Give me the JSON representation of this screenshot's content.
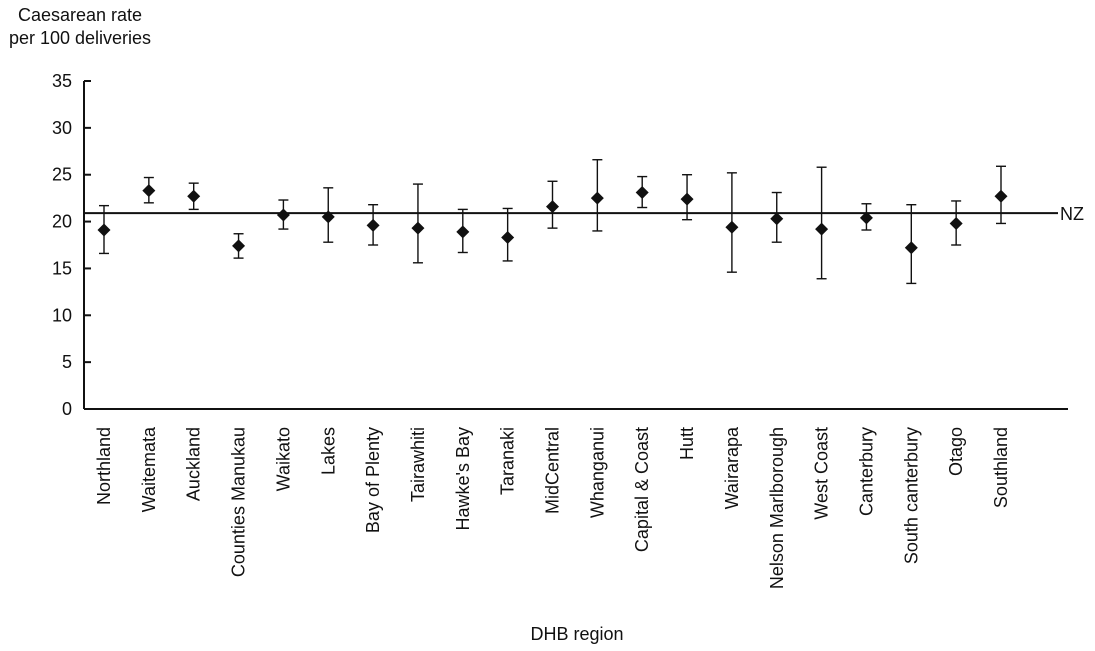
{
  "chart_data": {
    "type": "scatter",
    "title": "",
    "ylabel_lines": [
      "Caesarean rate",
      "per 100 deliveries"
    ],
    "xlabel": "DHB region",
    "ylim": [
      0,
      35
    ],
    "yticks": [
      0,
      5,
      10,
      15,
      20,
      25,
      30,
      35
    ],
    "reference_line": {
      "label": "NZ",
      "value": 20.9
    },
    "grid": false,
    "categories": [
      "Northland",
      "Waitemata",
      "Auckland",
      "Counties Manukau",
      "Waikato",
      "Lakes",
      "Bay of Plenty",
      "Tairawhiti",
      "Hawke's Bay",
      "Taranaki",
      "MidCentral",
      "Whanganui",
      "Capital & Coast",
      "Hutt",
      "Wairarapa",
      "Nelson Marlborough",
      "West Coast",
      "Canterbury",
      "South canterbury",
      "Otago",
      "Southland"
    ],
    "series": [
      {
        "values": [
          19.1,
          23.3,
          22.7,
          17.4,
          20.7,
          20.5,
          19.6,
          19.3,
          18.9,
          18.3,
          21.6,
          22.5,
          23.1,
          22.4,
          19.4,
          20.3,
          19.2,
          20.4,
          17.2,
          19.8,
          22.7
        ],
        "lower": [
          16.6,
          22.0,
          21.3,
          16.1,
          19.2,
          17.8,
          17.5,
          15.6,
          16.7,
          15.8,
          19.3,
          19.0,
          21.5,
          20.2,
          14.6,
          17.8,
          13.9,
          19.1,
          13.4,
          17.5,
          19.8
        ],
        "upper": [
          21.7,
          24.7,
          24.1,
          18.7,
          22.3,
          23.6,
          21.8,
          24.0,
          21.3,
          21.4,
          24.3,
          26.6,
          24.8,
          25.0,
          25.2,
          23.1,
          25.8,
          21.9,
          21.8,
          22.2,
          25.9
        ]
      }
    ]
  }
}
